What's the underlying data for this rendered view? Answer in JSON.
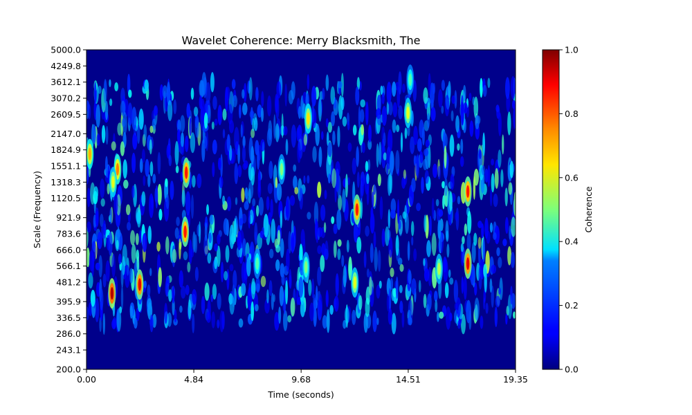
{
  "chart_data": {
    "type": "heatmap",
    "title": "Wavelet Coherence: Merry Blacksmith, The",
    "xlabel": "Time (seconds)",
    "ylabel": "Scale (Frequency)",
    "x_ticks": [
      "0.00",
      "4.84",
      "9.68",
      "14.51",
      "19.35"
    ],
    "x_tick_values": [
      0.0,
      4.84,
      9.68,
      14.51,
      19.35
    ],
    "xlim": [
      0.0,
      19.35
    ],
    "y_ticks": [
      "200.0",
      "243.1",
      "286.0",
      "336.5",
      "395.9",
      "481.2",
      "566.1",
      "666.0",
      "783.6",
      "921.9",
      "1120.5",
      "1318.3",
      "1551.1",
      "1824.9",
      "2147.0",
      "2609.5",
      "3070.2",
      "3612.1",
      "4249.8",
      "5000.0"
    ],
    "y_tick_values": [
      200.0,
      243.1,
      286.0,
      336.5,
      395.9,
      481.2,
      566.1,
      666.0,
      783.6,
      921.9,
      1120.5,
      1318.3,
      1551.1,
      1824.9,
      2147.0,
      2609.5,
      3070.2,
      3612.1,
      4249.8,
      5000.0
    ],
    "ylim": [
      200.0,
      5000.0
    ],
    "y_scale": "log",
    "colormap": "jet",
    "colorbar": {
      "label": "Coherence",
      "range": [
        0.0,
        1.0
      ],
      "ticks": [
        "0.0",
        "0.2",
        "0.4",
        "0.6",
        "0.8",
        "1.0"
      ],
      "tick_values": [
        0.0,
        0.2,
        0.4,
        0.6,
        0.8,
        1.0
      ]
    },
    "hotspots": [
      {
        "t": 1.15,
        "scale": 430,
        "value": 0.95
      },
      {
        "t": 2.4,
        "scale": 470,
        "value": 0.9
      },
      {
        "t": 4.5,
        "scale": 1450,
        "value": 0.85
      },
      {
        "t": 4.45,
        "scale": 800,
        "value": 0.85
      },
      {
        "t": 0.15,
        "scale": 1750,
        "value": 0.7
      },
      {
        "t": 1.4,
        "scale": 1500,
        "value": 0.75
      },
      {
        "t": 1.2,
        "scale": 1320,
        "value": 0.6
      },
      {
        "t": 10.0,
        "scale": 2500,
        "value": 0.65
      },
      {
        "t": 12.2,
        "scale": 1000,
        "value": 0.85
      },
      {
        "t": 12.1,
        "scale": 480,
        "value": 0.6
      },
      {
        "t": 14.5,
        "scale": 2650,
        "value": 0.6
      },
      {
        "t": 14.6,
        "scale": 3700,
        "value": 0.45
      },
      {
        "t": 17.2,
        "scale": 580,
        "value": 0.9
      },
      {
        "t": 17.2,
        "scale": 1200,
        "value": 0.85
      },
      {
        "t": 15.9,
        "scale": 550,
        "value": 0.55
      },
      {
        "t": 9.9,
        "scale": 560,
        "value": 0.5
      },
      {
        "t": 7.7,
        "scale": 580,
        "value": 0.45
      },
      {
        "t": 8.8,
        "scale": 1500,
        "value": 0.5
      }
    ]
  }
}
